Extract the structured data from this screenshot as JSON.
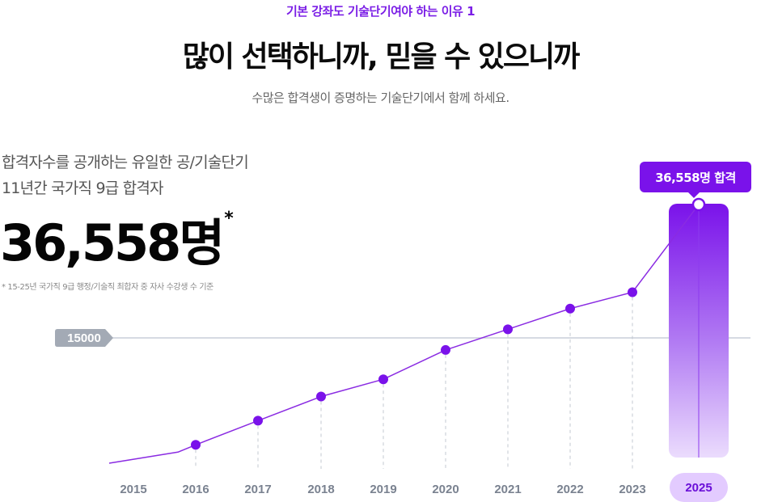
{
  "eyebrow": "기본 강좌도 기술단기여야 하는 이유 1",
  "headline": "많이 선택하니까, 믿을 수 있으니까",
  "subtitle": "수많은 합격생이 증명하는 기술단기에서 함께 하세요.",
  "desc_line1": "합격자수를 공개하는 유일한 공/기술단기",
  "desc_line2": "11년간 국가직 9급 합격자",
  "big_number": "36,558명",
  "big_number_mark": "*",
  "footnote": "* 15-25년 국가직 9급 행정/기술직 최합자 중 자사 수강생 수 기준",
  "callout": "36,558명 합격",
  "colors": {
    "accent": "#7a12ea",
    "line": "#8a2be2",
    "ref_line": "#c8ced8",
    "tick": "#7a8290",
    "pill_bg": "#e3cbff"
  },
  "chart_data": {
    "type": "line",
    "x": [
      "2015",
      "2016",
      "2017",
      "2018",
      "2019",
      "2020",
      "2021",
      "2022",
      "2023",
      "2025"
    ],
    "values": [
      null,
      2600,
      5400,
      8200,
      10200,
      13600,
      16000,
      18400,
      20300,
      36558
    ],
    "reference_line": {
      "value": 15000,
      "label": "15000"
    },
    "highlight": {
      "x": "2025",
      "label": "36,558명 합격"
    },
    "grid": false,
    "axis_break_above_reference": true
  }
}
